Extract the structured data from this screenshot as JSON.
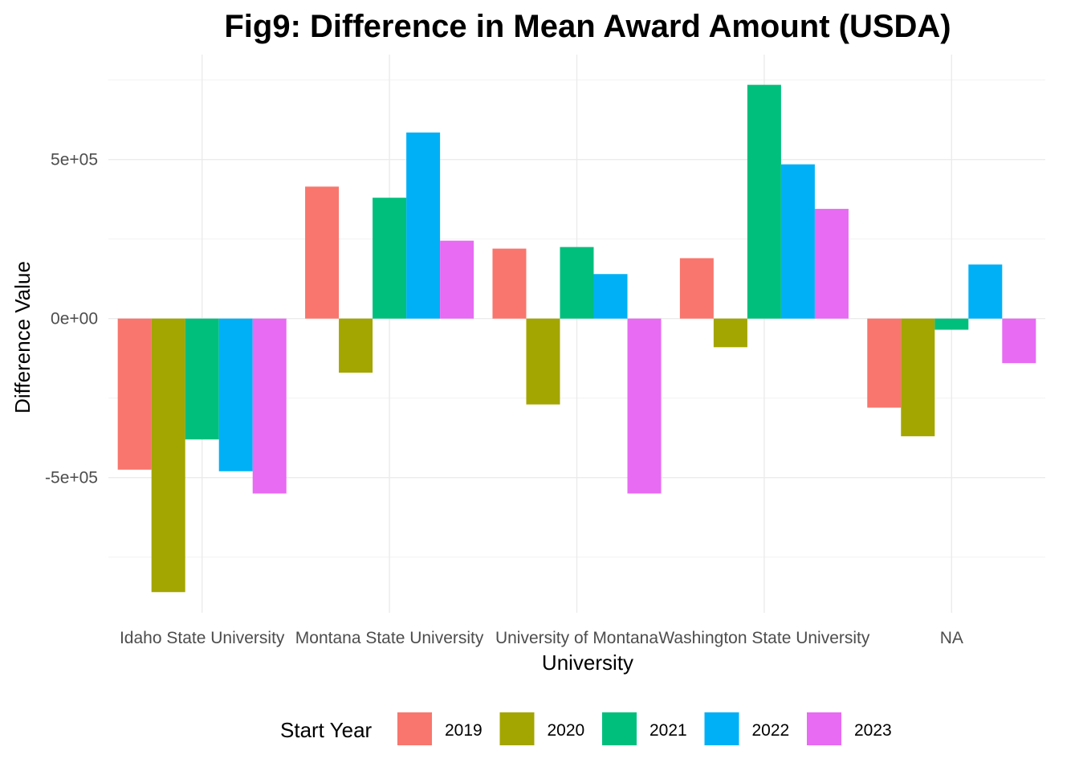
{
  "chart_data": {
    "type": "bar",
    "title": "Fig9: Difference in Mean Award Amount (USDA)",
    "xlabel": "University",
    "ylabel": "Difference Value",
    "categories": [
      "Idaho State University",
      "Montana State University",
      "University of Montana",
      "Washington State University",
      "NA"
    ],
    "ylim": [
      -925000,
      830000
    ],
    "y_ticks": [
      -500000,
      0,
      500000
    ],
    "y_tick_labels": [
      "-5e+05",
      "0e+00",
      "5e+05"
    ],
    "y_minor_ticks": [
      -750000,
      -250000,
      250000,
      750000
    ],
    "grid": true,
    "legend": {
      "title": "Start Year",
      "position": "bottom"
    },
    "series": [
      {
        "name": "2019",
        "color": "#F8766D",
        "values": [
          -475000,
          415000,
          220000,
          190000,
          -280000
        ]
      },
      {
        "name": "2020",
        "color": "#A3A500",
        "values": [
          -860000,
          -170000,
          -270000,
          -90000,
          -370000
        ]
      },
      {
        "name": "2021",
        "color": "#00BF7D",
        "values": [
          -380000,
          380000,
          225000,
          735000,
          -35000
        ]
      },
      {
        "name": "2022",
        "color": "#00B0F6",
        "values": [
          -480000,
          585000,
          140000,
          485000,
          170000
        ]
      },
      {
        "name": "2023",
        "color": "#E76BF3",
        "values": [
          -550000,
          245000,
          -550000,
          345000,
          -140000
        ]
      }
    ]
  }
}
